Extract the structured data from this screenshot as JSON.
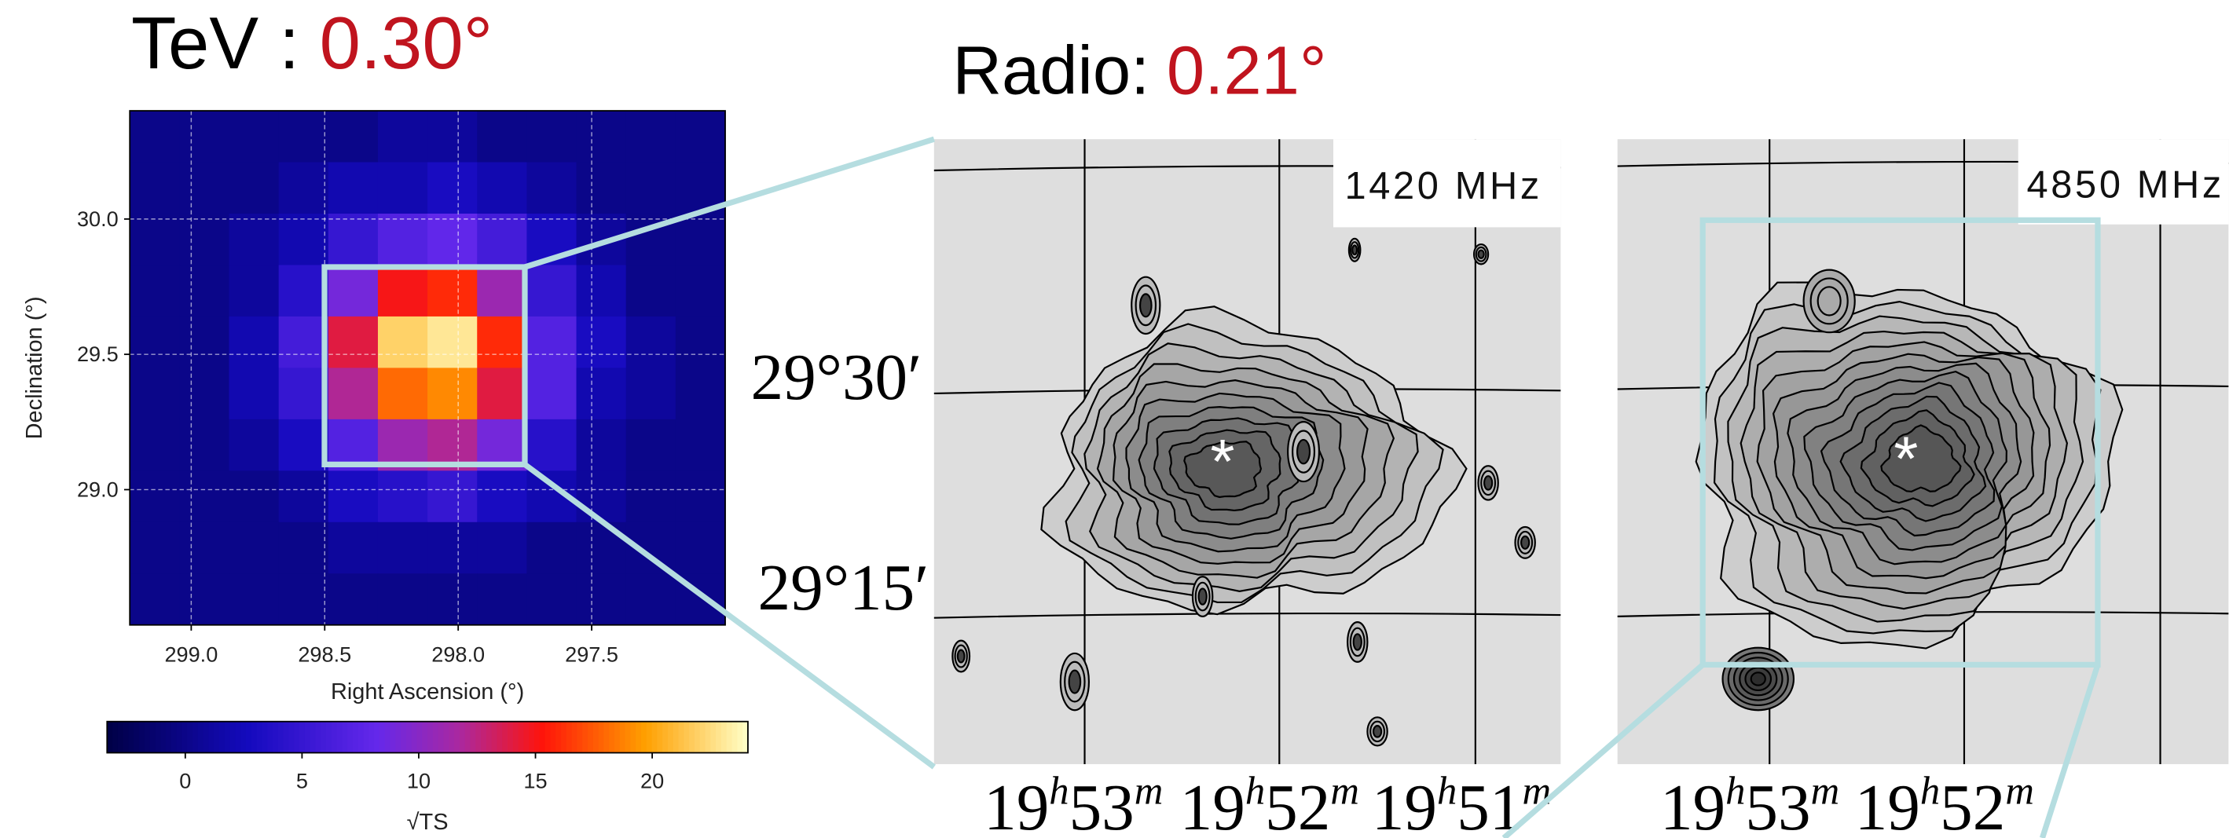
{
  "tev_panel": {
    "title": "TeV :",
    "size": "0.30°",
    "xlabel": "Right Ascension (°)",
    "ylabel": "Declination (°)",
    "xlim": [
      299.23,
      297.0
    ],
    "ylim": [
      28.5,
      30.4
    ],
    "xticks": [
      {
        "value": 299.0,
        "label": "299.0"
      },
      {
        "value": 298.5,
        "label": "298.5"
      },
      {
        "value": 298.0,
        "label": "298.0"
      },
      {
        "value": 297.5,
        "label": "297.5"
      }
    ],
    "yticks": [
      {
        "value": 29.0,
        "label": "29.0"
      },
      {
        "value": 29.5,
        "label": "29.5"
      },
      {
        "value": 30.0,
        "label": "30.0"
      }
    ],
    "cells": [
      [
        0,
        0,
        0,
        0,
        0,
        1,
        1,
        0,
        0,
        0,
        0,
        0
      ],
      [
        0,
        0,
        0,
        1,
        2,
        2,
        3,
        2,
        1,
        0,
        0,
        0
      ],
      [
        0,
        0,
        1,
        2,
        5,
        7,
        8,
        6,
        3,
        1,
        0,
        0
      ],
      [
        0,
        0,
        1,
        4,
        9,
        15,
        16,
        11,
        5,
        2,
        0,
        0
      ],
      [
        0,
        0,
        2,
        6,
        14,
        22,
        23,
        16,
        7,
        3,
        1,
        0
      ],
      [
        0,
        0,
        2,
        5,
        12,
        18,
        19,
        14,
        7,
        2,
        1,
        0
      ],
      [
        0,
        0,
        1,
        3,
        7,
        11,
        12,
        9,
        4,
        1,
        0,
        0
      ],
      [
        0,
        0,
        0,
        1,
        3,
        4,
        5,
        3,
        2,
        1,
        0,
        0
      ],
      [
        0,
        0,
        0,
        0,
        1,
        1,
        1,
        1,
        0,
        0,
        0,
        0
      ],
      [
        0,
        0,
        0,
        0,
        0,
        0,
        0,
        0,
        0,
        0,
        0,
        0
      ]
    ],
    "colorbar": {
      "label": "√TS",
      "lim": [
        -3.35,
        24.1
      ],
      "ticks": [
        0,
        5,
        10,
        15,
        20
      ]
    }
  },
  "radio_panel": {
    "title": "Radio:",
    "size": "0.21°",
    "dec_labels": [
      "29°30′",
      "29°15′"
    ],
    "maps": [
      {
        "label": "1420 MHz",
        "ra_labels": [
          [
            "19",
            "h",
            "53",
            "m"
          ],
          [
            "19",
            "h",
            "52",
            "m"
          ],
          [
            "19",
            "h",
            "51",
            "m"
          ]
        ]
      },
      {
        "label": "4850 MHz",
        "ra_labels": [
          [
            "19",
            "h",
            "53",
            "m"
          ],
          [
            "19",
            "h",
            "52",
            "m"
          ]
        ]
      }
    ]
  }
}
